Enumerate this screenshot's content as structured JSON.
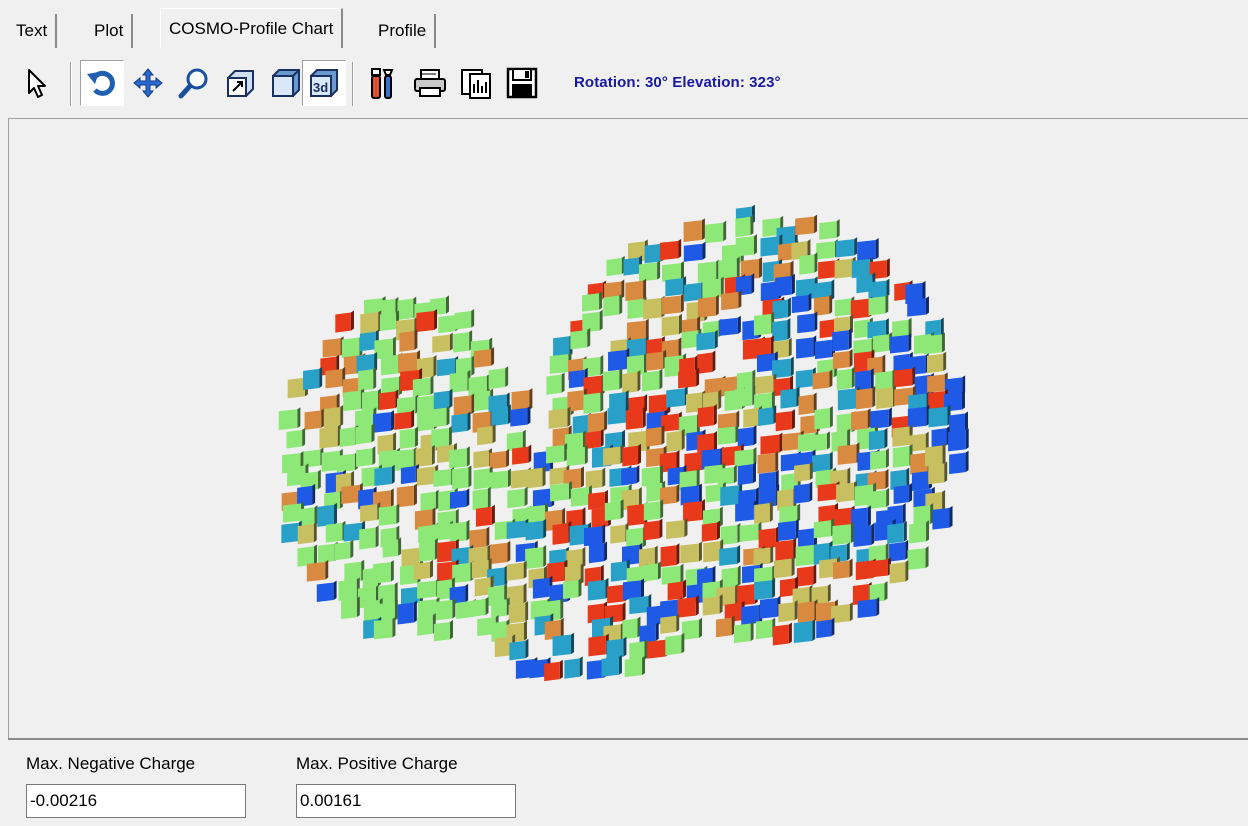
{
  "tabs": [
    {
      "label": "Text",
      "active": false
    },
    {
      "label": "Plot",
      "active": false
    },
    {
      "label": "COSMO-Profile Chart",
      "active": true
    },
    {
      "label": "Profile",
      "active": false
    }
  ],
  "toolbar": {
    "buttons": [
      {
        "icon": "pointer-arrow-icon"
      },
      {
        "icon": "rotate-icon",
        "pressed": true
      },
      {
        "icon": "move-icon"
      },
      {
        "icon": "zoom-icon"
      },
      {
        "icon": "depth-icon"
      },
      {
        "icon": "3d-box-icon"
      },
      {
        "icon": "3d-toggle-icon",
        "pressed": true
      },
      {
        "icon": "edit-tools-icon"
      },
      {
        "icon": "print-icon"
      },
      {
        "icon": "copy-icon"
      },
      {
        "icon": "save-icon"
      }
    ],
    "status": "Rotation: 30° Elevation: 323°"
  },
  "fields": {
    "neg_label": "Max. Negative Charge",
    "neg_value": "-0.00216",
    "pos_label": "Max. Positive Charge",
    "pos_value": "0.00161"
  },
  "colors": {
    "blue": "#1e5ae6",
    "cyan": "#28a0c8",
    "green": "#8ee878",
    "yellowgreen": "#c8c060",
    "orange": "#d88a40",
    "red": "#e83a1a",
    "status_text": "#1a1aa0"
  }
}
